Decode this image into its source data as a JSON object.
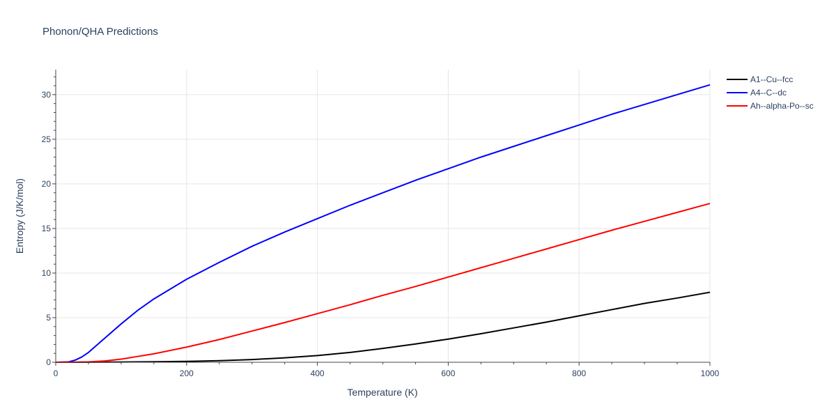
{
  "chart_data": {
    "type": "line",
    "title": "Phonon/QHA Predictions",
    "xlabel": "Temperature (K)",
    "ylabel": "Entropy (J/K/mol)",
    "xlim": [
      0,
      1000
    ],
    "ylim": [
      0,
      32.8
    ],
    "x_ticks": [
      0,
      200,
      400,
      600,
      800,
      1000
    ],
    "y_ticks": [
      0,
      5,
      10,
      15,
      20,
      25,
      30
    ],
    "grid": true,
    "legend_position": "top-right",
    "series": [
      {
        "name": "A1--Cu--fcc",
        "color": "#000000",
        "x": [
          0,
          50,
          100,
          150,
          200,
          250,
          300,
          350,
          400,
          450,
          500,
          550,
          600,
          650,
          700,
          750,
          800,
          850,
          900,
          950,
          1000
        ],
        "y": [
          0,
          0.01,
          0.03,
          0.06,
          0.1,
          0.18,
          0.3,
          0.5,
          0.75,
          1.1,
          1.55,
          2.05,
          2.6,
          3.2,
          3.85,
          4.5,
          5.2,
          5.9,
          6.6,
          7.2,
          7.85
        ]
      },
      {
        "name": "A4--C--dc",
        "color": "#0000ff",
        "x": [
          0,
          20,
          30,
          40,
          50,
          75,
          100,
          125,
          150,
          200,
          250,
          300,
          350,
          400,
          450,
          500,
          550,
          600,
          650,
          700,
          750,
          800,
          850,
          900,
          950,
          1000
        ],
        "y": [
          0,
          0.05,
          0.25,
          0.6,
          1.1,
          2.7,
          4.3,
          5.8,
          7.1,
          9.3,
          11.2,
          13.0,
          14.6,
          16.1,
          17.6,
          19.0,
          20.4,
          21.7,
          23.0,
          24.2,
          25.4,
          26.6,
          27.8,
          28.9,
          30.0,
          31.1
        ]
      },
      {
        "name": "Ah--alpha-Po--sc",
        "color": "#ff0000",
        "x": [
          0,
          25,
          50,
          75,
          100,
          125,
          150,
          200,
          250,
          300,
          350,
          400,
          450,
          500,
          550,
          600,
          650,
          700,
          750,
          800,
          850,
          900,
          950,
          1000
        ],
        "y": [
          0,
          0.01,
          0.05,
          0.15,
          0.35,
          0.65,
          0.95,
          1.7,
          2.55,
          3.5,
          4.45,
          5.45,
          6.45,
          7.5,
          8.5,
          9.55,
          10.6,
          11.65,
          12.7,
          13.75,
          14.8,
          15.8,
          16.8,
          17.8
        ]
      }
    ]
  }
}
